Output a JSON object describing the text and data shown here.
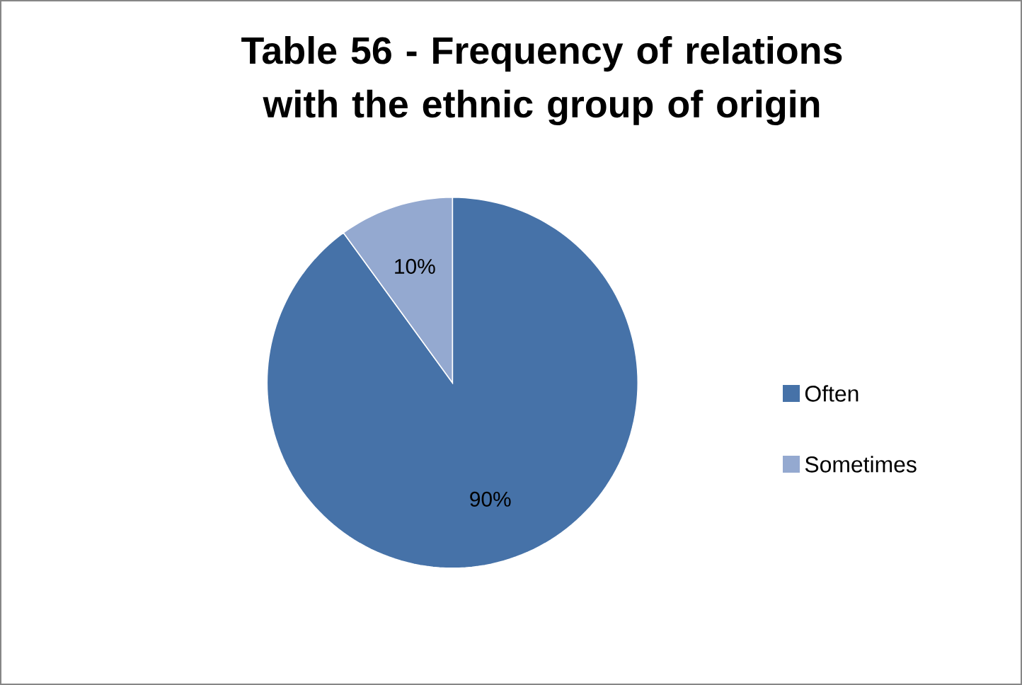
{
  "chart_data": {
    "type": "pie",
    "title": "Table 56 - Frequency of relations with the ethnic group of origin",
    "categories": [
      "Often",
      "Sometimes"
    ],
    "values": [
      90,
      10
    ],
    "colors": [
      "#4672a8",
      "#94a9d0"
    ],
    "value_labels": [
      "90%",
      "10%"
    ],
    "legend": "right"
  }
}
